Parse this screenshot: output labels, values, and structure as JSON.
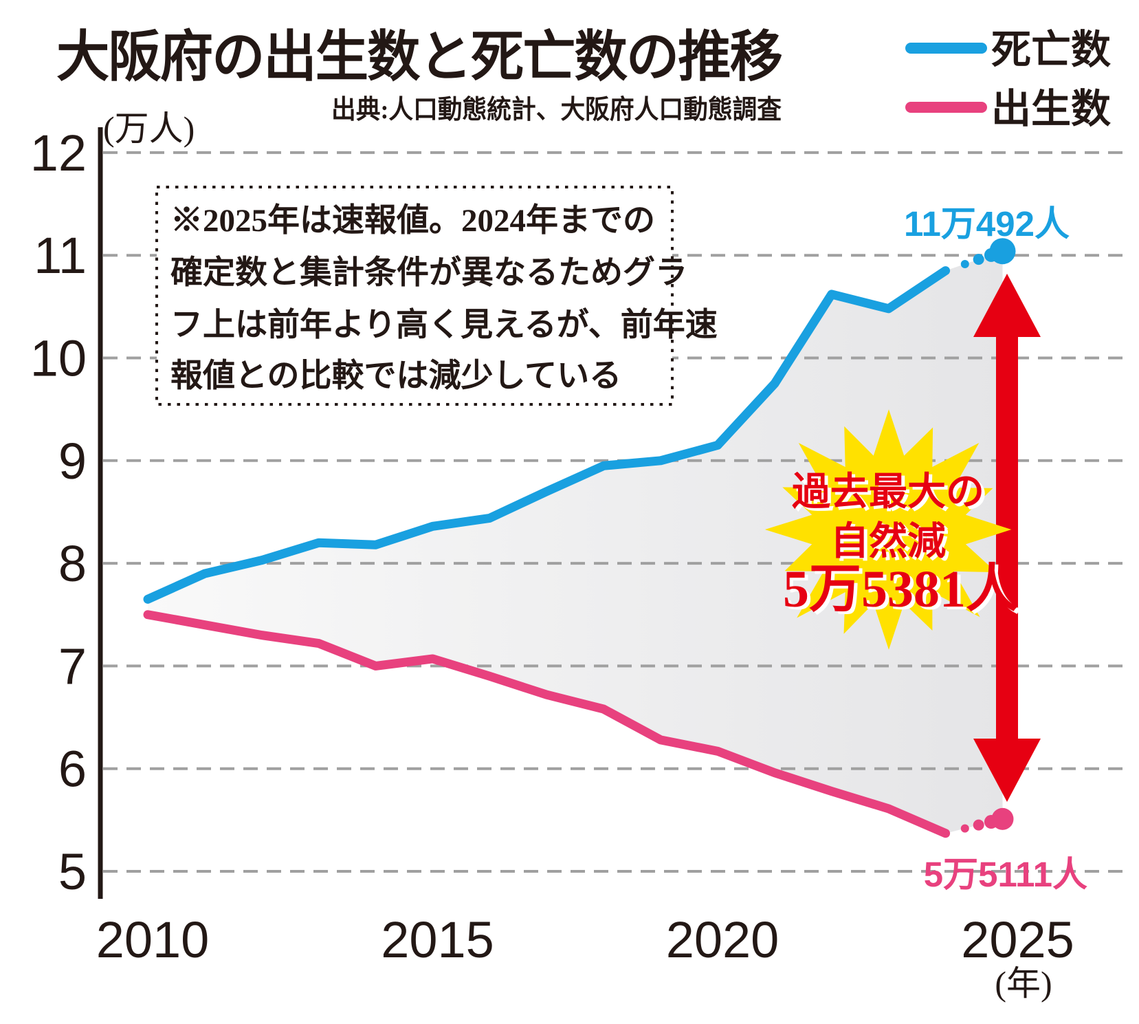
{
  "title": "大阪府の出生数と死亡数の推移",
  "source": "出典:人口動態統計、大阪府人口動態調査",
  "legend": [
    {
      "label": "死亡数",
      "color": "#19a0e0"
    },
    {
      "label": "出生数",
      "color": "#e8417e"
    }
  ],
  "y_axis_unit": "(万人)",
  "x_axis_unit": "(年)",
  "note": {
    "lines": [
      "※2025年は速報値。2024年までの",
      "確定数と集計条件が異なるためグラ",
      "フ上は前年より高く見えるが、前年速",
      "報値との比較では減少している"
    ]
  },
  "annotations": {
    "deaths_end": "11万492人",
    "births_end": "5万5111人"
  },
  "starburst": {
    "lines": [
      "過去最大の",
      "自然減",
      "5万5381人"
    ],
    "fill": "#ffe100",
    "text_color": "#e60012"
  },
  "colors": {
    "deaths_line": "#19a0e0",
    "births_line": "#e8417e",
    "arrow_red": "#e60012",
    "grid_gray": "#a0a0a0",
    "ink_black": "#231815",
    "area_light": "#f8f8f8",
    "area_dark": "#e6e6e8"
  },
  "chart_data": {
    "type": "line",
    "x": [
      2010,
      2011,
      2012,
      2013,
      2014,
      2015,
      2016,
      2017,
      2018,
      2019,
      2020,
      2021,
      2022,
      2023,
      2024,
      2025
    ],
    "series": [
      {
        "name": "死亡数",
        "color": "#19a0e0",
        "values": [
          7.65,
          7.9,
          8.03,
          8.2,
          8.18,
          8.36,
          8.44,
          8.7,
          8.95,
          9.0,
          9.15,
          9.75,
          10.62,
          10.48,
          10.85,
          11.04
        ],
        "end_value_label": "11万492人"
      },
      {
        "name": "出生数",
        "color": "#e8417e",
        "values": [
          7.5,
          7.4,
          7.3,
          7.22,
          7.0,
          7.07,
          6.9,
          6.72,
          6.58,
          6.28,
          6.17,
          5.96,
          5.78,
          5.61,
          5.37,
          5.51
        ],
        "end_value_label": "5万5111人"
      }
    ],
    "last_segment_dotted": true,
    "note_2025": "速報値",
    "natural_decrease_2025": "5万5381人",
    "ylim": [
      5,
      12
    ],
    "yticks": [
      12,
      11,
      10,
      9,
      8,
      7,
      6,
      5
    ],
    "xticks": [
      2010,
      2015,
      2020,
      2025
    ],
    "grid": "horizontal-dashed",
    "legend_position": "top-right",
    "title": "大阪府の出生数と死亡数の推移",
    "ylabel": "万人",
    "xlabel": "年"
  }
}
